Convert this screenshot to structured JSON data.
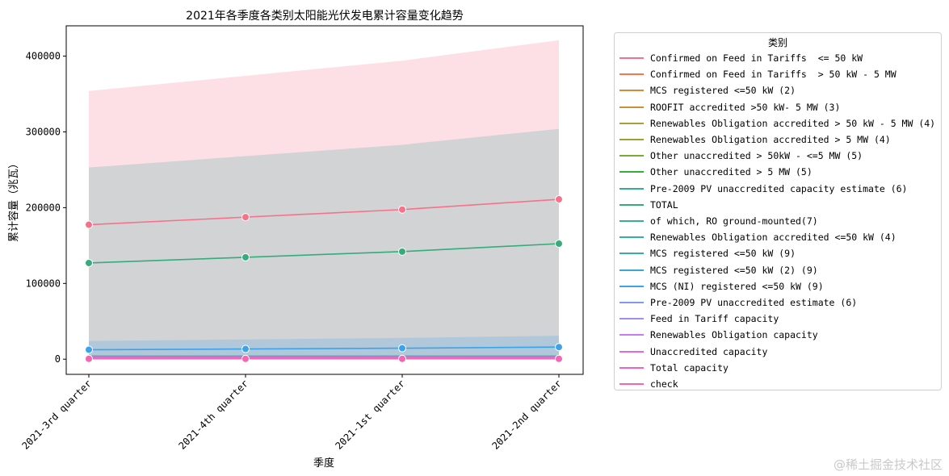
{
  "chart_data": {
    "type": "line",
    "title": "2021年各季度各类别太阳能光伏发电累计容量变化趋势",
    "xlabel": "季度",
    "ylabel": "累计容量（兆瓦）",
    "categories": [
      "2021-3rd quarter",
      "2021-4th quarter",
      "2021-1st quarter",
      "2021-2nd quarter"
    ],
    "ylim": [
      -20000,
      440000
    ],
    "yticks": [
      0,
      100000,
      200000,
      300000,
      400000
    ],
    "ytick_labels": [
      "0",
      "100000",
      "200000",
      "300000",
      "400000"
    ],
    "grid": false,
    "legend_title": "类别",
    "legend_position": "outside right",
    "confidence_bands": [
      {
        "color": "#f77189",
        "lower": [
          0,
          0,
          0,
          0
        ],
        "upper": [
          354000,
          374000,
          394000,
          421000
        ]
      },
      {
        "color": "#3ba3a0",
        "lower": [
          0,
          0,
          0,
          0
        ],
        "upper": [
          253000,
          268000,
          283000,
          304000
        ]
      },
      {
        "color": "#3ba3ec",
        "lower": [
          0,
          0,
          0,
          0
        ],
        "upper": [
          24000,
          26000,
          28000,
          31000
        ]
      }
    ],
    "series": [
      {
        "name": "Confirmed on Feed in Tariffs  <= 50 kW",
        "color": "#f77189",
        "values": [
          177500,
          187500,
          197500,
          211000
        ]
      },
      {
        "name": "Confirmed on Feed in Tariffs  > 50 kW - 5 MW",
        "color": "#f7754f",
        "values": [
          null,
          null,
          null,
          null
        ]
      },
      {
        "name": "MCS registered <=50 kW (2)",
        "color": "#dc8932",
        "values": [
          null,
          null,
          null,
          null
        ]
      },
      {
        "name": "ROOFIT accredited >50 kW- 5 MW (3)",
        "color": "#c39532",
        "values": [
          null,
          null,
          null,
          null
        ]
      },
      {
        "name": "Renewables Obligation accredited > 50 kW - 5 MW (4)",
        "color": "#ae9d31",
        "values": [
          null,
          null,
          null,
          null
        ]
      },
      {
        "name": "Renewables Obligation accredited > 5 MW (4)",
        "color": "#97a431",
        "values": [
          null,
          null,
          null,
          null
        ]
      },
      {
        "name": "Other unaccredited > 50kW - <=5 MW (5)",
        "color": "#77ab31",
        "values": [
          null,
          null,
          null,
          null
        ]
      },
      {
        "name": "Other unaccredited > 5 MW (5)",
        "color": "#33b039",
        "values": [
          null,
          null,
          null,
          null
        ]
      },
      {
        "name": "Pre-2009 PV unaccredited capacity estimate (6)",
        "color": "#34ae91",
        "values": [
          null,
          null,
          null,
          null
        ]
      },
      {
        "name": "TOTAL",
        "color": "#35ac7a",
        "values": [
          127000,
          134500,
          142000,
          152500
        ]
      },
      {
        "name": "of which, RO ground-mounted(7)",
        "color": "#36ada4",
        "values": [
          null,
          null,
          null,
          null
        ]
      },
      {
        "name": "Renewables Obligation accredited <=50 kW (4)",
        "color": "#37abb4",
        "values": [
          null,
          null,
          null,
          null
        ]
      },
      {
        "name": "MCS registered <=50 kW (9)",
        "color": "#38aabf",
        "values": [
          null,
          null,
          null,
          null
        ]
      },
      {
        "name": "MCS registered <=50 kW (2) (9)",
        "color": "#39a7d0",
        "values": [
          null,
          null,
          null,
          null
        ]
      },
      {
        "name": "MCS (NI) registered <=50 kW (9)",
        "color": "#3ba3ec",
        "values": [
          12500,
          13500,
          14500,
          16000
        ]
      },
      {
        "name": "Pre-2009 PV unaccredited estimate (6)",
        "color": "#8197f4",
        "values": [
          null,
          null,
          null,
          null
        ]
      },
      {
        "name": "Feed in Tariff capacity",
        "color": "#a48cf4",
        "values": [
          null,
          null,
          null,
          null
        ]
      },
      {
        "name": "Renewables Obligation capacity",
        "color": "#cc7af4",
        "values": [
          null,
          null,
          null,
          null
        ]
      },
      {
        "name": "Unaccredited capacity",
        "color": "#e866d8",
        "values": [
          null,
          null,
          null,
          null
        ]
      },
      {
        "name": "Total capacity",
        "color": "#f45fc5",
        "values": [
          null,
          null,
          null,
          null
        ]
      },
      {
        "name": "check",
        "color": "#f565b4",
        "values": [
          500,
          500,
          500,
          500
        ]
      }
    ]
  },
  "watermark": "@稀土掘金技术社区"
}
